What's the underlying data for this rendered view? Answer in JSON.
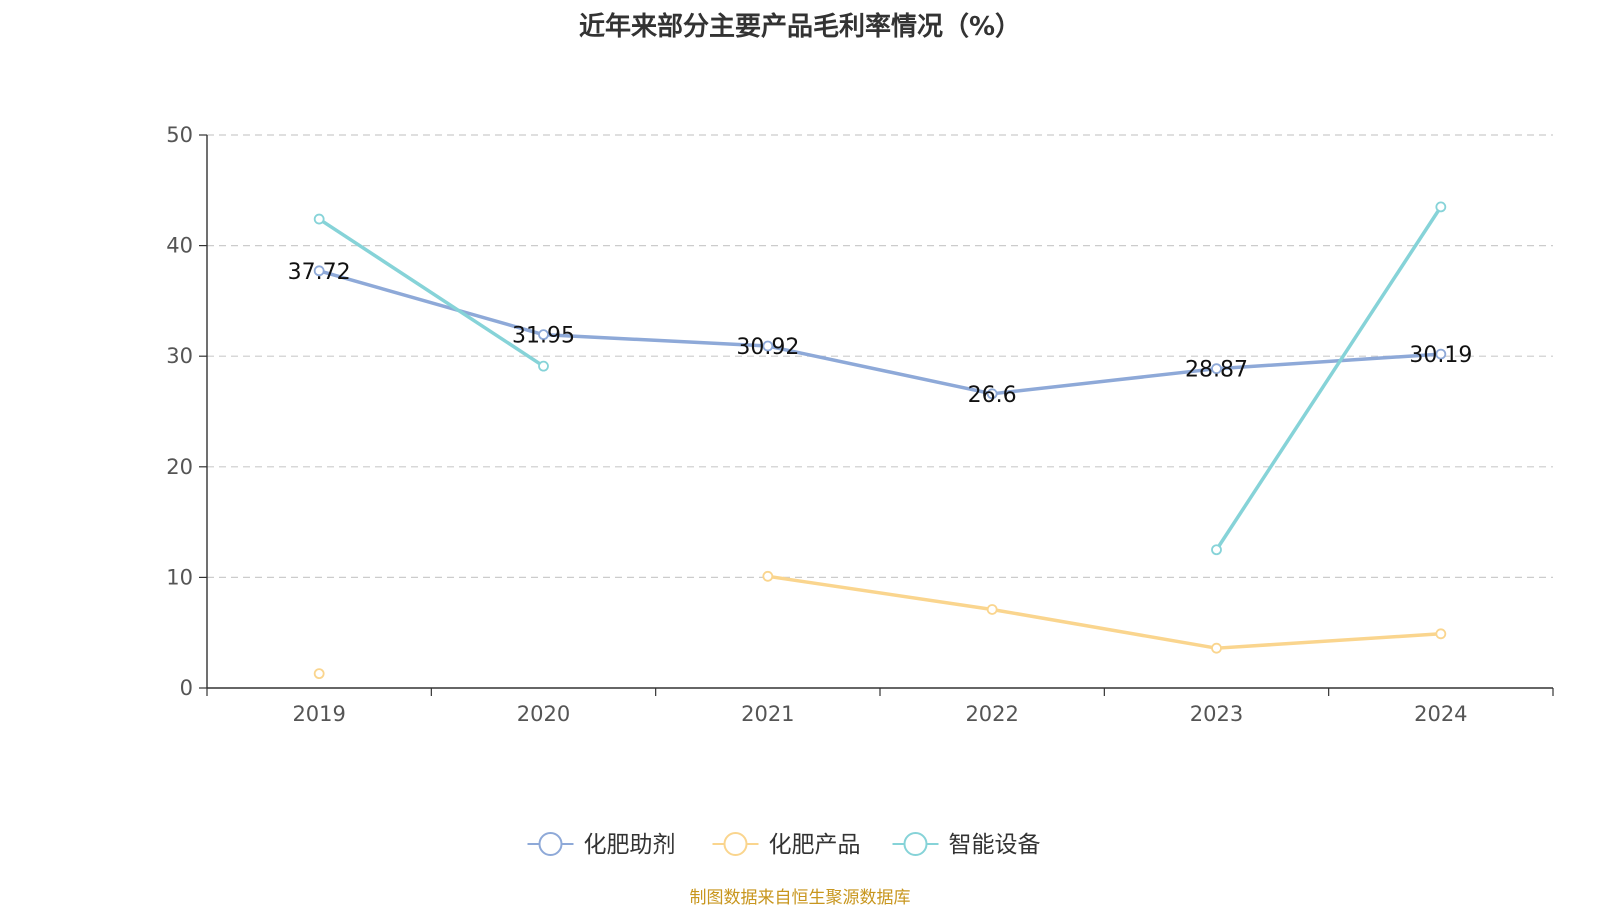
{
  "source_note": "制图数据来自恒生聚源数据库",
  "chart_data": {
    "type": "line",
    "title": "近年来部分主要产品毛利率情况（%）",
    "x": [
      "2019",
      "2020",
      "2021",
      "2022",
      "2023",
      "2024"
    ],
    "ylim": [
      0,
      50
    ],
    "yticks": [
      0,
      10,
      20,
      30,
      40,
      50
    ],
    "grid": true,
    "legend_position": "bottom",
    "series": [
      {
        "name": "化肥助剂",
        "color": "#8ea9d8",
        "values": [
          37.72,
          31.95,
          30.92,
          26.6,
          28.87,
          30.19
        ],
        "labels": [
          "37.72",
          "31.95",
          "30.92",
          "26.6",
          "28.87",
          "30.19"
        ]
      },
      {
        "name": "化肥产品",
        "color": "#fad58e",
        "values": [
          1.3,
          null,
          10.1,
          7.1,
          3.6,
          4.9
        ],
        "labels": []
      },
      {
        "name": "智能设备",
        "color": "#86d3d8",
        "values": [
          42.4,
          29.1,
          null,
          null,
          12.5,
          43.5
        ],
        "labels": []
      }
    ]
  }
}
